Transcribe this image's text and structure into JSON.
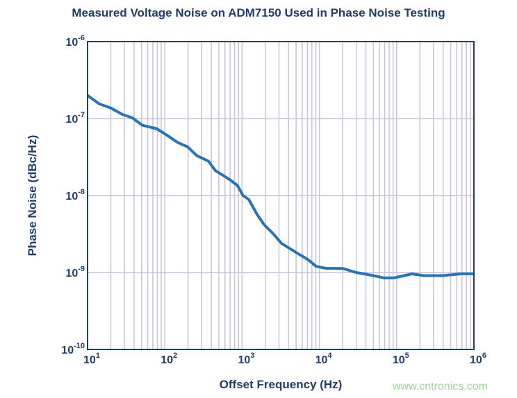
{
  "chart_data": {
    "type": "line",
    "title": "Measured Voltage Noise on ADM7150 Used in Phase Noise Testing",
    "xlabel": "Offset Frequency (Hz)",
    "ylabel": "Phase Noise (dBc/Hz)",
    "x_scale": "log",
    "y_scale": "log",
    "xlim": [
      10,
      1000000
    ],
    "ylim": [
      1e-10,
      1e-06
    ],
    "grid": true,
    "x_ticks": [
      {
        "base": "10",
        "exp": "1"
      },
      {
        "base": "10",
        "exp": "2"
      },
      {
        "base": "10",
        "exp": "3"
      },
      {
        "base": "10",
        "exp": "4"
      },
      {
        "base": "10",
        "exp": "5"
      },
      {
        "base": "10",
        "exp": "6"
      }
    ],
    "y_ticks": [
      {
        "base": "10",
        "exp": "-6"
      },
      {
        "base": "10",
        "exp": "-7"
      },
      {
        "base": "10",
        "exp": "-8"
      },
      {
        "base": "10",
        "exp": "-9"
      },
      {
        "base": "10",
        "exp": "-10"
      }
    ],
    "series": [
      {
        "color": "#2a73b5",
        "x": [
          10,
          14.2,
          20,
          28,
          38,
          51,
          78,
          106,
          146,
          197,
          259,
          367,
          452,
          680,
          870,
          1030,
          1220,
          1560,
          1920,
          2520,
          3220,
          5090,
          7080,
          9100,
          12400,
          19900,
          30000,
          50000,
          68000,
          92000,
          158000,
          224000,
          393000,
          676000,
          1000000
        ],
        "y": [
          2e-07,
          1.55e-07,
          1.37e-07,
          1.14e-07,
          1.02e-07,
          8.2e-08,
          7.4e-08,
          6.1e-08,
          4.9e-08,
          4.3e-08,
          3.3e-08,
          2.8e-08,
          2.1e-08,
          1.63e-08,
          1.35e-08,
          1e-08,
          8.9e-09,
          5.7e-09,
          4.2e-09,
          3.2e-09,
          2.4e-09,
          1.8e-09,
          1.48e-09,
          1.2e-09,
          1.13e-09,
          1.13e-09,
          1e-09,
          9.1e-10,
          8.5e-10,
          8.5e-10,
          9.6e-10,
          9.1e-10,
          9.1e-10,
          9.6e-10,
          9.6e-10
        ]
      }
    ]
  },
  "watermark": "www.cntronics.com"
}
